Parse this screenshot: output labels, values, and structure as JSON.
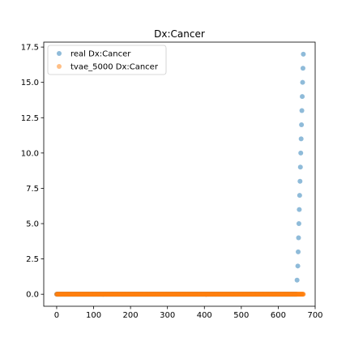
{
  "chart_data": {
    "type": "scatter",
    "title": "Dx:Cancer",
    "xlabel": "",
    "ylabel": "",
    "xlim": [
      -35,
      700
    ],
    "ylim": [
      -0.85,
      17.85
    ],
    "xticks": [
      0,
      100,
      200,
      300,
      400,
      500,
      600,
      700
    ],
    "xtick_labels": [
      "0",
      "100",
      "200",
      "300",
      "400",
      "500",
      "600",
      "700"
    ],
    "yticks": [
      0.0,
      2.5,
      5.0,
      7.5,
      10.0,
      12.5,
      15.0,
      17.5
    ],
    "ytick_labels": [
      "0.0",
      "2.5",
      "5.0",
      "7.5",
      "10.0",
      "12.5",
      "15.0",
      "17.5"
    ],
    "grid": false,
    "legend_position": "top-left",
    "series": [
      {
        "name": "real Dx:Cancer",
        "color": "#1f77b4",
        "alpha": 0.5,
        "zero_run": {
          "x_start": 0,
          "x_end": 650,
          "y": 0
        },
        "points": [
          [
            651,
            1
          ],
          [
            653,
            2
          ],
          [
            654,
            3
          ],
          [
            655,
            4
          ],
          [
            656,
            5
          ],
          [
            657,
            6
          ],
          [
            658,
            7
          ],
          [
            659,
            8
          ],
          [
            660,
            9
          ],
          [
            661,
            10
          ],
          [
            662,
            11
          ],
          [
            663,
            12
          ],
          [
            664,
            13
          ],
          [
            665,
            14
          ],
          [
            666,
            15
          ],
          [
            667,
            16
          ],
          [
            668,
            17
          ]
        ]
      },
      {
        "name": "tvae_5000 Dx:Cancer",
        "color": "#ff7f0e",
        "alpha": 0.5,
        "zero_run": {
          "x_start": 0,
          "x_end": 668,
          "y": 0
        },
        "points": []
      }
    ]
  }
}
